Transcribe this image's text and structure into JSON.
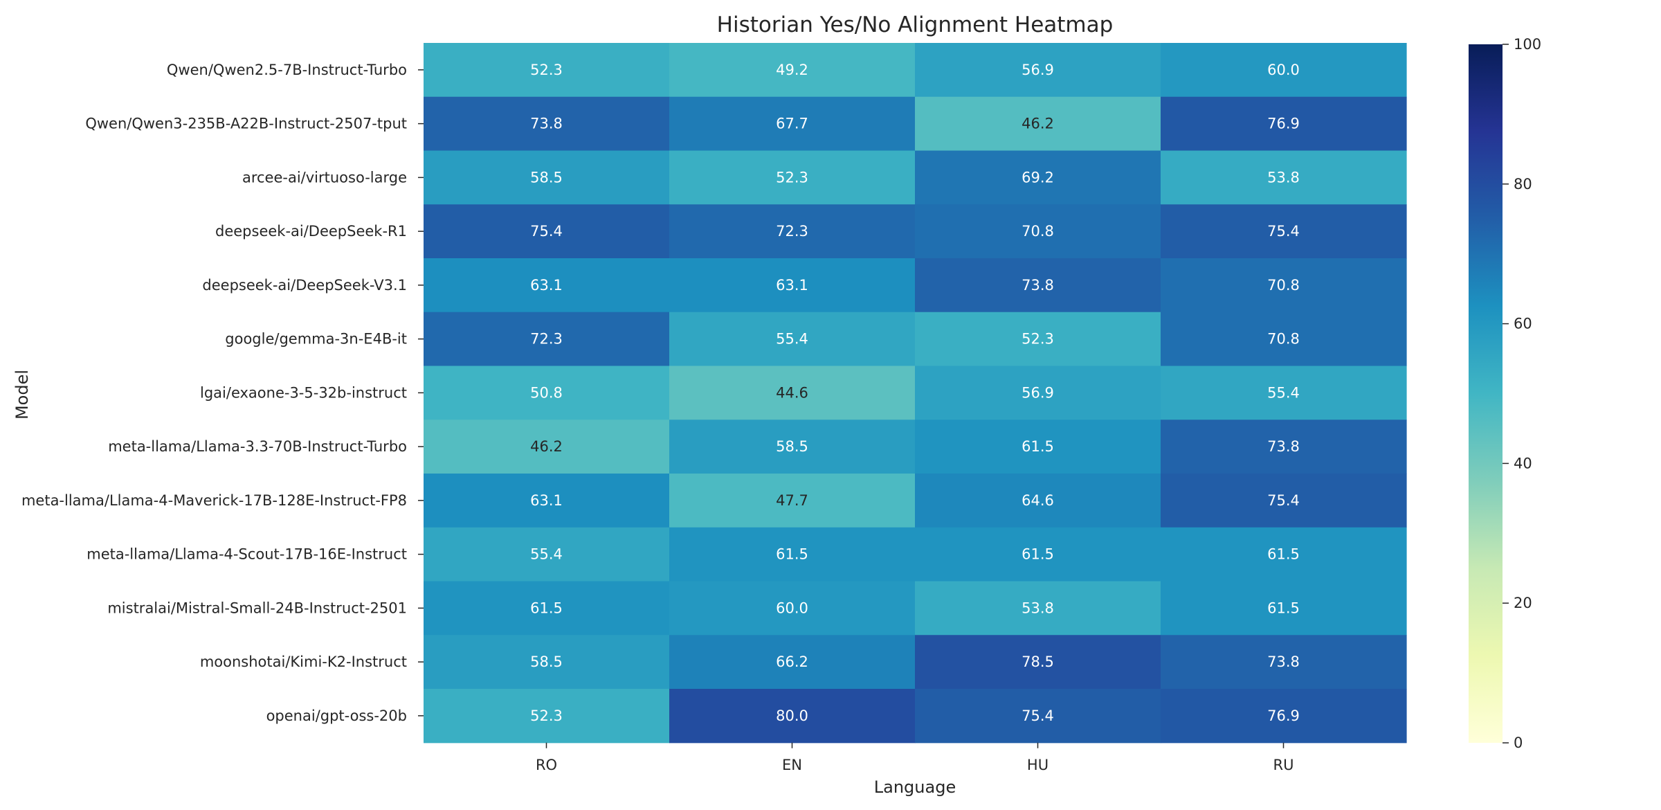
{
  "chart_data": {
    "type": "heatmap",
    "title": "Historian Yes/No Alignment Heatmap",
    "xlabel": "Language",
    "ylabel": "Model",
    "x_categories": [
      "RO",
      "EN",
      "HU",
      "RU"
    ],
    "y_categories": [
      "Qwen/Qwen2.5-7B-Instruct-Turbo",
      "Qwen/Qwen3-235B-A22B-Instruct-2507-tput",
      "arcee-ai/virtuoso-large",
      "deepseek-ai/DeepSeek-R1",
      "deepseek-ai/DeepSeek-V3.1",
      "google/gemma-3n-E4B-it",
      "lgai/exaone-3-5-32b-instruct",
      "meta-llama/Llama-3.3-70B-Instruct-Turbo",
      "meta-llama/Llama-4-Maverick-17B-128E-Instruct-FP8",
      "meta-llama/Llama-4-Scout-17B-16E-Instruct",
      "mistralai/Mistral-Small-24B-Instruct-2501",
      "moonshotai/Kimi-K2-Instruct",
      "openai/gpt-oss-20b"
    ],
    "values": [
      [
        52.3,
        49.2,
        56.9,
        60.0
      ],
      [
        73.8,
        67.7,
        46.2,
        76.9
      ],
      [
        58.5,
        52.3,
        69.2,
        53.8
      ],
      [
        75.4,
        72.3,
        70.8,
        75.4
      ],
      [
        63.1,
        63.1,
        73.8,
        70.8
      ],
      [
        72.3,
        55.4,
        52.3,
        70.8
      ],
      [
        50.8,
        44.6,
        56.9,
        55.4
      ],
      [
        46.2,
        58.5,
        61.5,
        73.8
      ],
      [
        63.1,
        47.7,
        64.6,
        75.4
      ],
      [
        55.4,
        61.5,
        61.5,
        61.5
      ],
      [
        61.5,
        60.0,
        53.8,
        61.5
      ],
      [
        58.5,
        66.2,
        78.5,
        73.8
      ],
      [
        52.3,
        80.0,
        75.4,
        76.9
      ]
    ],
    "value_format": "0.1f",
    "colorbar": {
      "range": [
        0,
        100
      ],
      "ticks": [
        0,
        20,
        40,
        60,
        80,
        100
      ],
      "colormap": "YlGnBu"
    },
    "grid": false,
    "colors": {
      "cmap_stops": [
        "#ffffd9",
        "#edf8b1",
        "#c7e9b4",
        "#7fcdbb",
        "#41b6c4",
        "#1d91c0",
        "#225ea8",
        "#253494",
        "#081d58"
      ],
      "text_light": "#ffffff",
      "text_dark": "#262626"
    }
  }
}
